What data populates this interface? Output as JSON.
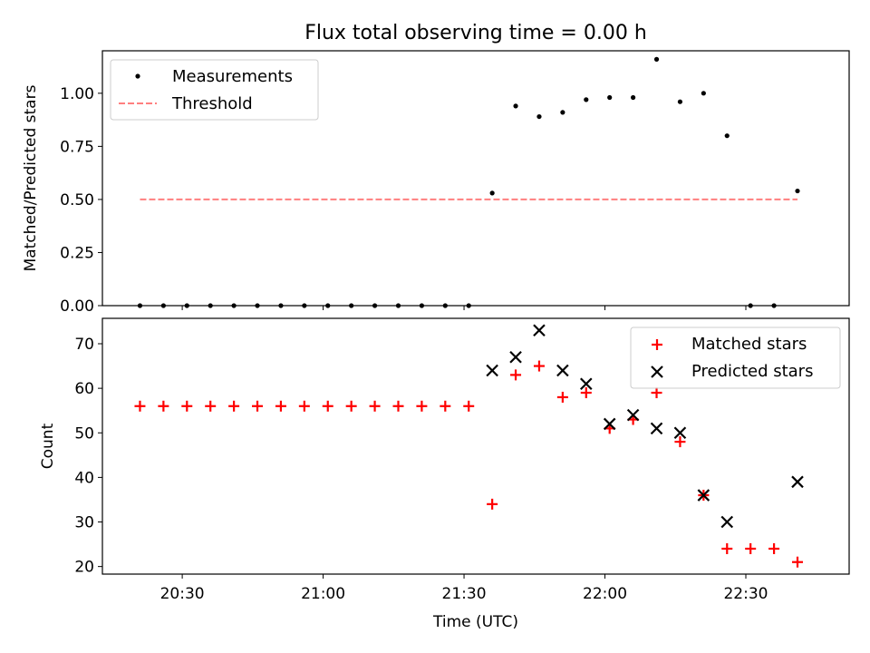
{
  "title": "Flux total observing time = 0.00 h",
  "colors": {
    "measurement": "#000000",
    "threshold": "#ff7f7f",
    "matched": "#ff0000",
    "predicted": "#000000",
    "axes": "#000000",
    "legend_border": "#cccccc"
  },
  "chart_data": [
    {
      "type": "scatter",
      "ylabel": "Matched/Predicted stars",
      "ylim": [
        0,
        1.2
      ],
      "yticks": [
        0,
        0.25,
        0.5,
        0.75,
        1.0
      ],
      "ytick_labels": [
        "0.00",
        "0.25",
        "0.50",
        "0.75",
        "1.00"
      ],
      "legend_placement": "upper-left",
      "series": [
        {
          "name": "Measurements",
          "kind": "scatter",
          "marker": "dot",
          "x": [
            "20:21",
            "20:26",
            "20:31",
            "20:36",
            "20:41",
            "20:46",
            "20:51",
            "20:56",
            "21:01",
            "21:06",
            "21:11",
            "21:16",
            "21:21",
            "21:26",
            "21:31",
            "21:36",
            "21:41",
            "21:46",
            "21:51",
            "21:56",
            "22:01",
            "22:06",
            "22:11",
            "22:16",
            "22:21",
            "22:26",
            "22:31",
            "22:36",
            "22:41"
          ],
          "values": [
            0,
            0,
            0,
            0,
            0,
            0,
            0,
            0,
            0,
            0,
            0,
            0,
            0,
            0,
            0,
            0.53,
            0.94,
            0.89,
            0.91,
            0.97,
            0.98,
            0.98,
            1.16,
            0.96,
            1.0,
            0.8,
            0,
            0,
            0.54
          ]
        },
        {
          "name": "Threshold",
          "kind": "line",
          "style": "dashed",
          "x": [
            "20:21",
            "22:41"
          ],
          "values": [
            0.5,
            0.5
          ]
        }
      ]
    },
    {
      "type": "scatter",
      "xlabel": "Time (UTC)",
      "ylabel": "Count",
      "ylim": [
        18.3,
        75.7
      ],
      "yticks": [
        20,
        30,
        40,
        50,
        60,
        70
      ],
      "ytick_labels": [
        "20",
        "30",
        "40",
        "50",
        "60",
        "70"
      ],
      "xticks": [
        "20:30",
        "21:00",
        "21:30",
        "22:00",
        "22:30"
      ],
      "legend_placement": "upper-right",
      "series": [
        {
          "name": "Matched stars",
          "kind": "scatter",
          "marker": "plus",
          "x": [
            "20:21",
            "20:26",
            "20:31",
            "20:36",
            "20:41",
            "20:46",
            "20:51",
            "20:56",
            "21:01",
            "21:06",
            "21:11",
            "21:16",
            "21:21",
            "21:26",
            "21:31",
            "21:36",
            "21:41",
            "21:46",
            "21:51",
            "21:56",
            "22:01",
            "22:06",
            "22:11",
            "22:16",
            "22:21",
            "22:26",
            "22:31",
            "22:36",
            "22:41"
          ],
          "values": [
            56,
            56,
            56,
            56,
            56,
            56,
            56,
            56,
            56,
            56,
            56,
            56,
            56,
            56,
            56,
            34,
            63,
            65,
            58,
            59,
            51,
            53,
            59,
            48,
            36,
            24,
            24,
            24,
            21
          ]
        },
        {
          "name": "Predicted stars",
          "kind": "scatter",
          "marker": "x",
          "x": [
            "21:36",
            "21:41",
            "21:46",
            "21:51",
            "21:56",
            "22:01",
            "22:06",
            "22:11",
            "22:16",
            "22:21",
            "22:26",
            "22:41"
          ],
          "values": [
            64,
            67,
            73,
            64,
            61,
            52,
            54,
            51,
            50,
            36,
            30,
            39
          ]
        }
      ]
    }
  ],
  "x_axis": {
    "range": [
      "20:13",
      "22:52"
    ]
  }
}
